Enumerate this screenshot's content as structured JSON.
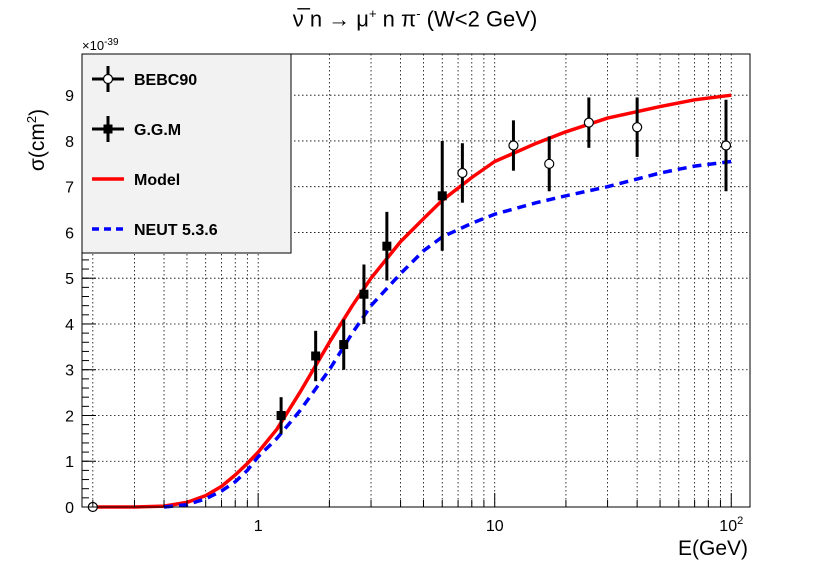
{
  "chart_data": {
    "type": "scatter",
    "title_parts": {
      "nubar": "ν̅",
      "n1": " n ",
      "arrow": "→",
      "mu": " μ",
      "mu_sup": "+",
      "n2": " n π",
      "pi_sup": "-",
      "tail": " (W<2 GeV)"
    },
    "xlabel": "E(GeV)",
    "ylabel_main": "σ(cm",
    "ylabel_sup": "2",
    "ylabel_close": ")",
    "y_exponent_base": "×10",
    "y_exponent": "-39",
    "xscale": "log",
    "xlim": [
      0.18,
      120
    ],
    "ylim": [
      0,
      9.9
    ],
    "x_ticks": [
      {
        "value": 1,
        "label": "1"
      },
      {
        "value": 10,
        "label": "10"
      },
      {
        "value": 100,
        "label": "10",
        "sup": "2"
      }
    ],
    "y_ticks": [
      0,
      1,
      2,
      3,
      4,
      5,
      6,
      7,
      8,
      9
    ],
    "grid": true,
    "legend": [
      "BEBC90",
      "G.G.M",
      "Model",
      "NEUT 5.3.6"
    ],
    "legend_position": "top-left",
    "series": [
      {
        "name": "BEBC90",
        "marker": "open-circle",
        "color": "#000000",
        "points": [
          {
            "x": 0.2,
            "y": 0.0,
            "err": 0
          },
          {
            "x": 7.3,
            "y": 7.3,
            "err": 0.65
          },
          {
            "x": 12,
            "y": 7.9,
            "err": 0.55
          },
          {
            "x": 17,
            "y": 7.5,
            "err": 0.6
          },
          {
            "x": 25,
            "y": 8.4,
            "err": 0.55
          },
          {
            "x": 40,
            "y": 8.3,
            "err": 0.65
          },
          {
            "x": 95,
            "y": 7.9,
            "err": 1.0
          }
        ]
      },
      {
        "name": "G.G.M",
        "marker": "filled-square",
        "color": "#000000",
        "points": [
          {
            "x": 1.25,
            "y": 2.0,
            "err": 0.4
          },
          {
            "x": 1.75,
            "y": 3.3,
            "err": 0.55
          },
          {
            "x": 2.3,
            "y": 3.55,
            "err": 0.55
          },
          {
            "x": 2.8,
            "y": 4.65,
            "err": 0.65
          },
          {
            "x": 3.5,
            "y": 5.7,
            "err": 0.75
          },
          {
            "x": 6.0,
            "y": 6.8,
            "err": 1.2
          }
        ]
      },
      {
        "name": "Model",
        "type": "line",
        "color": "#ff0000",
        "style": "solid",
        "x": [
          0.2,
          0.3,
          0.4,
          0.5,
          0.6,
          0.7,
          0.8,
          0.9,
          1.0,
          1.2,
          1.5,
          2.0,
          2.5,
          3.0,
          4.0,
          5.0,
          6.0,
          8.0,
          10,
          15,
          20,
          30,
          50,
          70,
          100
        ],
        "y": [
          0.0,
          0.0,
          0.02,
          0.1,
          0.25,
          0.45,
          0.7,
          0.95,
          1.2,
          1.7,
          2.5,
          3.6,
          4.4,
          5.0,
          5.8,
          6.3,
          6.7,
          7.2,
          7.55,
          7.95,
          8.2,
          8.5,
          8.75,
          8.9,
          9.0
        ]
      },
      {
        "name": "NEUT 5.3.6",
        "type": "line",
        "color": "#0000ff",
        "style": "dashed",
        "x": [
          0.4,
          0.5,
          0.6,
          0.7,
          0.8,
          0.9,
          1.0,
          1.2,
          1.5,
          2.0,
          2.5,
          3.0,
          4.0,
          5.0,
          6.0,
          8.0,
          10,
          15,
          20,
          30,
          50,
          70,
          100
        ],
        "y": [
          0.0,
          0.05,
          0.18,
          0.35,
          0.55,
          0.8,
          1.1,
          1.5,
          2.1,
          3.0,
          3.8,
          4.4,
          5.1,
          5.6,
          5.9,
          6.2,
          6.4,
          6.65,
          6.8,
          7.0,
          7.3,
          7.45,
          7.55
        ]
      }
    ]
  }
}
